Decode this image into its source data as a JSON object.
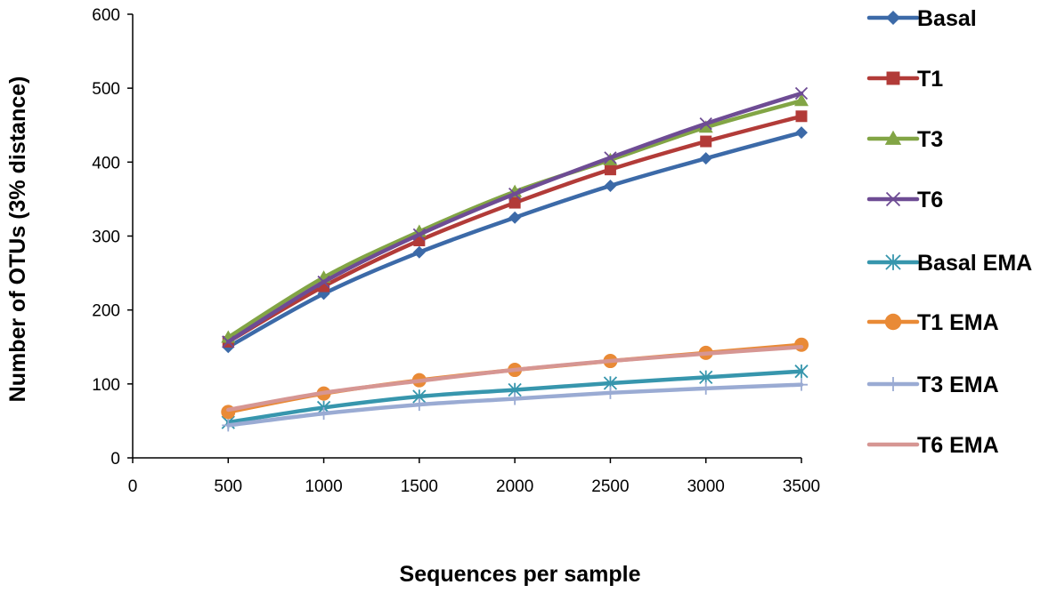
{
  "chart_data": {
    "type": "line",
    "title": "",
    "xlabel": "Sequences per sample",
    "ylabel": "Number of OTUs (3% distance)",
    "xlim": [
      0,
      3500
    ],
    "ylim": [
      0,
      600
    ],
    "xticks": [
      0,
      500,
      1000,
      1500,
      2000,
      2500,
      3000,
      3500
    ],
    "yticks": [
      0,
      100,
      200,
      300,
      400,
      500,
      600
    ],
    "x": [
      500,
      1000,
      1500,
      2000,
      2500,
      3000,
      3500
    ],
    "grid": false,
    "legend_position": "right",
    "series": [
      {
        "name": "Basal",
        "color": "#3c6aa8",
        "marker": "diamond",
        "values": [
          150,
          222,
          278,
          325,
          368,
          405,
          440
        ]
      },
      {
        "name": "T1",
        "color": "#b23b38",
        "marker": "square",
        "values": [
          157,
          232,
          294,
          345,
          390,
          428,
          462
        ]
      },
      {
        "name": "T3",
        "color": "#82a545",
        "marker": "triangle",
        "values": [
          163,
          244,
          306,
          360,
          403,
          447,
          483
        ]
      },
      {
        "name": "T6",
        "color": "#6e4c94",
        "marker": "x",
        "values": [
          157,
          238,
          302,
          357,
          406,
          452,
          493
        ]
      },
      {
        "name": "Basal EMA",
        "color": "#3796ad",
        "marker": "asterisk",
        "values": [
          48,
          68,
          83,
          92,
          101,
          109,
          117
        ]
      },
      {
        "name": " T1 EMA",
        "color": "#e98a36",
        "marker": "circle",
        "values": [
          62,
          87,
          105,
          119,
          131,
          142,
          153
        ]
      },
      {
        "name": "T3 EMA",
        "color": "#9aabd3",
        "marker": "plus",
        "values": [
          44,
          60,
          72,
          80,
          88,
          94,
          99
        ]
      },
      {
        "name": "T6 EMA",
        "color": "#d69693",
        "marker": "none",
        "values": [
          65,
          88,
          104,
          119,
          131,
          141,
          150
        ]
      }
    ]
  }
}
